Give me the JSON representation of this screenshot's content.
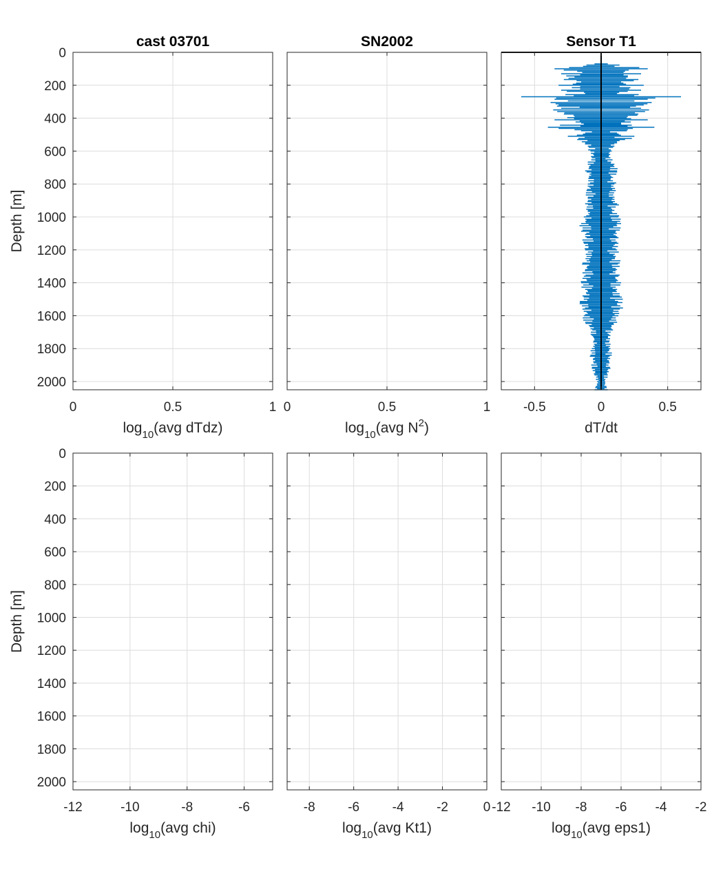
{
  "colors": {
    "series": "#0072bd",
    "axis": "#262626",
    "grid": "#dcdcdc",
    "background": "#ffffff"
  },
  "chart_data": [
    {
      "type": "line",
      "panel": "top-left",
      "title": "cast 03701",
      "xlabel": {
        "pre": "log",
        "sub": "10",
        "post": "(avg dTdz)",
        "sup": ""
      },
      "ylabel": "Depth [m]",
      "xlim": [
        0,
        1
      ],
      "ylim": [
        0,
        2050
      ],
      "y_reversed": true,
      "xticks": [
        0,
        0.5,
        1
      ],
      "xtick_labels": [
        "0",
        "0.5",
        "1"
      ],
      "yticks": [
        0,
        200,
        400,
        600,
        800,
        1000,
        1200,
        1400,
        1600,
        1800,
        2000
      ],
      "ytick_labels": [
        "0",
        "200",
        "400",
        "600",
        "800",
        "1000",
        "1200",
        "1400",
        "1600",
        "1800",
        "2000"
      ],
      "grid": true,
      "series": []
    },
    {
      "type": "line",
      "panel": "top-middle",
      "title": "SN2002",
      "xlabel": {
        "pre": "log",
        "sub": "10",
        "post": "(avg N",
        "sup": "2",
        "post2": ")"
      },
      "ylabel": "",
      "xlim": [
        0,
        1
      ],
      "ylim": [
        0,
        2050
      ],
      "y_reversed": true,
      "xticks": [
        0,
        0.5,
        1
      ],
      "xtick_labels": [
        "0",
        "0.5",
        "1"
      ],
      "yticks": [
        0,
        200,
        400,
        600,
        800,
        1000,
        1200,
        1400,
        1600,
        1800,
        2000
      ],
      "ytick_labels": [],
      "grid": true,
      "series": []
    },
    {
      "type": "line",
      "panel": "top-right",
      "title": "Sensor T1",
      "xlabel": {
        "pre": "dT/dt",
        "sub": "",
        "post": "",
        "sup": ""
      },
      "ylabel": "",
      "xlim": [
        -0.75,
        0.75
      ],
      "ylim": [
        0,
        2050
      ],
      "y_reversed": true,
      "xticks": [
        -0.5,
        0,
        0.5
      ],
      "xtick_labels": [
        "-0.5",
        "0",
        "0.5"
      ],
      "yticks": [
        0,
        200,
        400,
        600,
        800,
        1000,
        1200,
        1400,
        1600,
        1800,
        2000
      ],
      "ytick_labels": [],
      "grid": true,
      "zero_line": true,
      "series": [
        {
          "depth": [
            70,
            100,
            115,
            130,
            150,
            165,
            180,
            200,
            215,
            230,
            250,
            270,
            285,
            295,
            305,
            320,
            340,
            350,
            360,
            375,
            390,
            410,
            430,
            455,
            470,
            490,
            510,
            530,
            550,
            570,
            600,
            640,
            680,
            720,
            760,
            800,
            840,
            880,
            920,
            960,
            1000,
            1040,
            1080,
            1120,
            1160,
            1200,
            1240,
            1280,
            1320,
            1360,
            1400,
            1440,
            1480,
            1520,
            1560,
            1600,
            1640,
            1680,
            1720,
            1760,
            1800,
            1840,
            1880,
            1920,
            1960,
            2000,
            2030,
            2050
          ],
          "half_width": [
            0.05,
            0.35,
            0.18,
            0.3,
            0.2,
            0.28,
            0.15,
            0.32,
            0.22,
            0.3,
            0.12,
            0.6,
            0.35,
            0.25,
            0.38,
            0.32,
            0.3,
            0.36,
            0.33,
            0.28,
            0.2,
            0.35,
            0.15,
            0.4,
            0.2,
            0.12,
            0.25,
            0.18,
            0.12,
            0.1,
            0.08,
            0.07,
            0.1,
            0.12,
            0.09,
            0.1,
            0.11,
            0.1,
            0.12,
            0.1,
            0.13,
            0.15,
            0.14,
            0.12,
            0.13,
            0.12,
            0.11,
            0.14,
            0.12,
            0.13,
            0.15,
            0.12,
            0.14,
            0.16,
            0.14,
            0.13,
            0.12,
            0.08,
            0.07,
            0.06,
            0.07,
            0.08,
            0.06,
            0.07,
            0.05,
            0.03,
            0.04,
            0.05
          ]
        }
      ]
    },
    {
      "type": "line",
      "panel": "bottom-left",
      "title": "",
      "xlabel": {
        "pre": "log",
        "sub": "10",
        "post": "(avg chi)",
        "sup": ""
      },
      "ylabel": "Depth [m]",
      "xlim": [
        -12,
        -5
      ],
      "ylim": [
        0,
        2050
      ],
      "y_reversed": true,
      "xticks": [
        -12,
        -10,
        -8,
        -6
      ],
      "xtick_labels": [
        "-12",
        "-10",
        "-8",
        "-6"
      ],
      "yticks": [
        0,
        200,
        400,
        600,
        800,
        1000,
        1200,
        1400,
        1600,
        1800,
        2000
      ],
      "ytick_labels": [
        "0",
        "200",
        "400",
        "600",
        "800",
        "1000",
        "1200",
        "1400",
        "1600",
        "1800",
        "2000"
      ],
      "grid": true,
      "series": []
    },
    {
      "type": "line",
      "panel": "bottom-middle",
      "title": "",
      "xlabel": {
        "pre": "log",
        "sub": "10",
        "post": "(avg Kt1)",
        "sup": ""
      },
      "ylabel": "",
      "xlim": [
        -9,
        0
      ],
      "ylim": [
        0,
        2050
      ],
      "y_reversed": true,
      "xticks": [
        -8,
        -6,
        -4,
        -2,
        0
      ],
      "xtick_labels": [
        "-8",
        "-6",
        "-4",
        "-2",
        "0"
      ],
      "yticks": [
        0,
        200,
        400,
        600,
        800,
        1000,
        1200,
        1400,
        1600,
        1800,
        2000
      ],
      "ytick_labels": [],
      "grid": true,
      "series": []
    },
    {
      "type": "line",
      "panel": "bottom-right",
      "title": "",
      "xlabel": {
        "pre": "log",
        "sub": "10",
        "post": "(avg eps1)",
        "sup": ""
      },
      "ylabel": "",
      "xlim": [
        -12,
        -2
      ],
      "ylim": [
        0,
        2050
      ],
      "y_reversed": true,
      "xticks": [
        -12,
        -10,
        -8,
        -6,
        -4,
        -2
      ],
      "xtick_labels": [
        "-12",
        "-10",
        "-8",
        "-6",
        "-4",
        "-2"
      ],
      "yticks": [
        0,
        200,
        400,
        600,
        800,
        1000,
        1200,
        1400,
        1600,
        1800,
        2000
      ],
      "ytick_labels": [],
      "grid": true,
      "series": []
    }
  ]
}
